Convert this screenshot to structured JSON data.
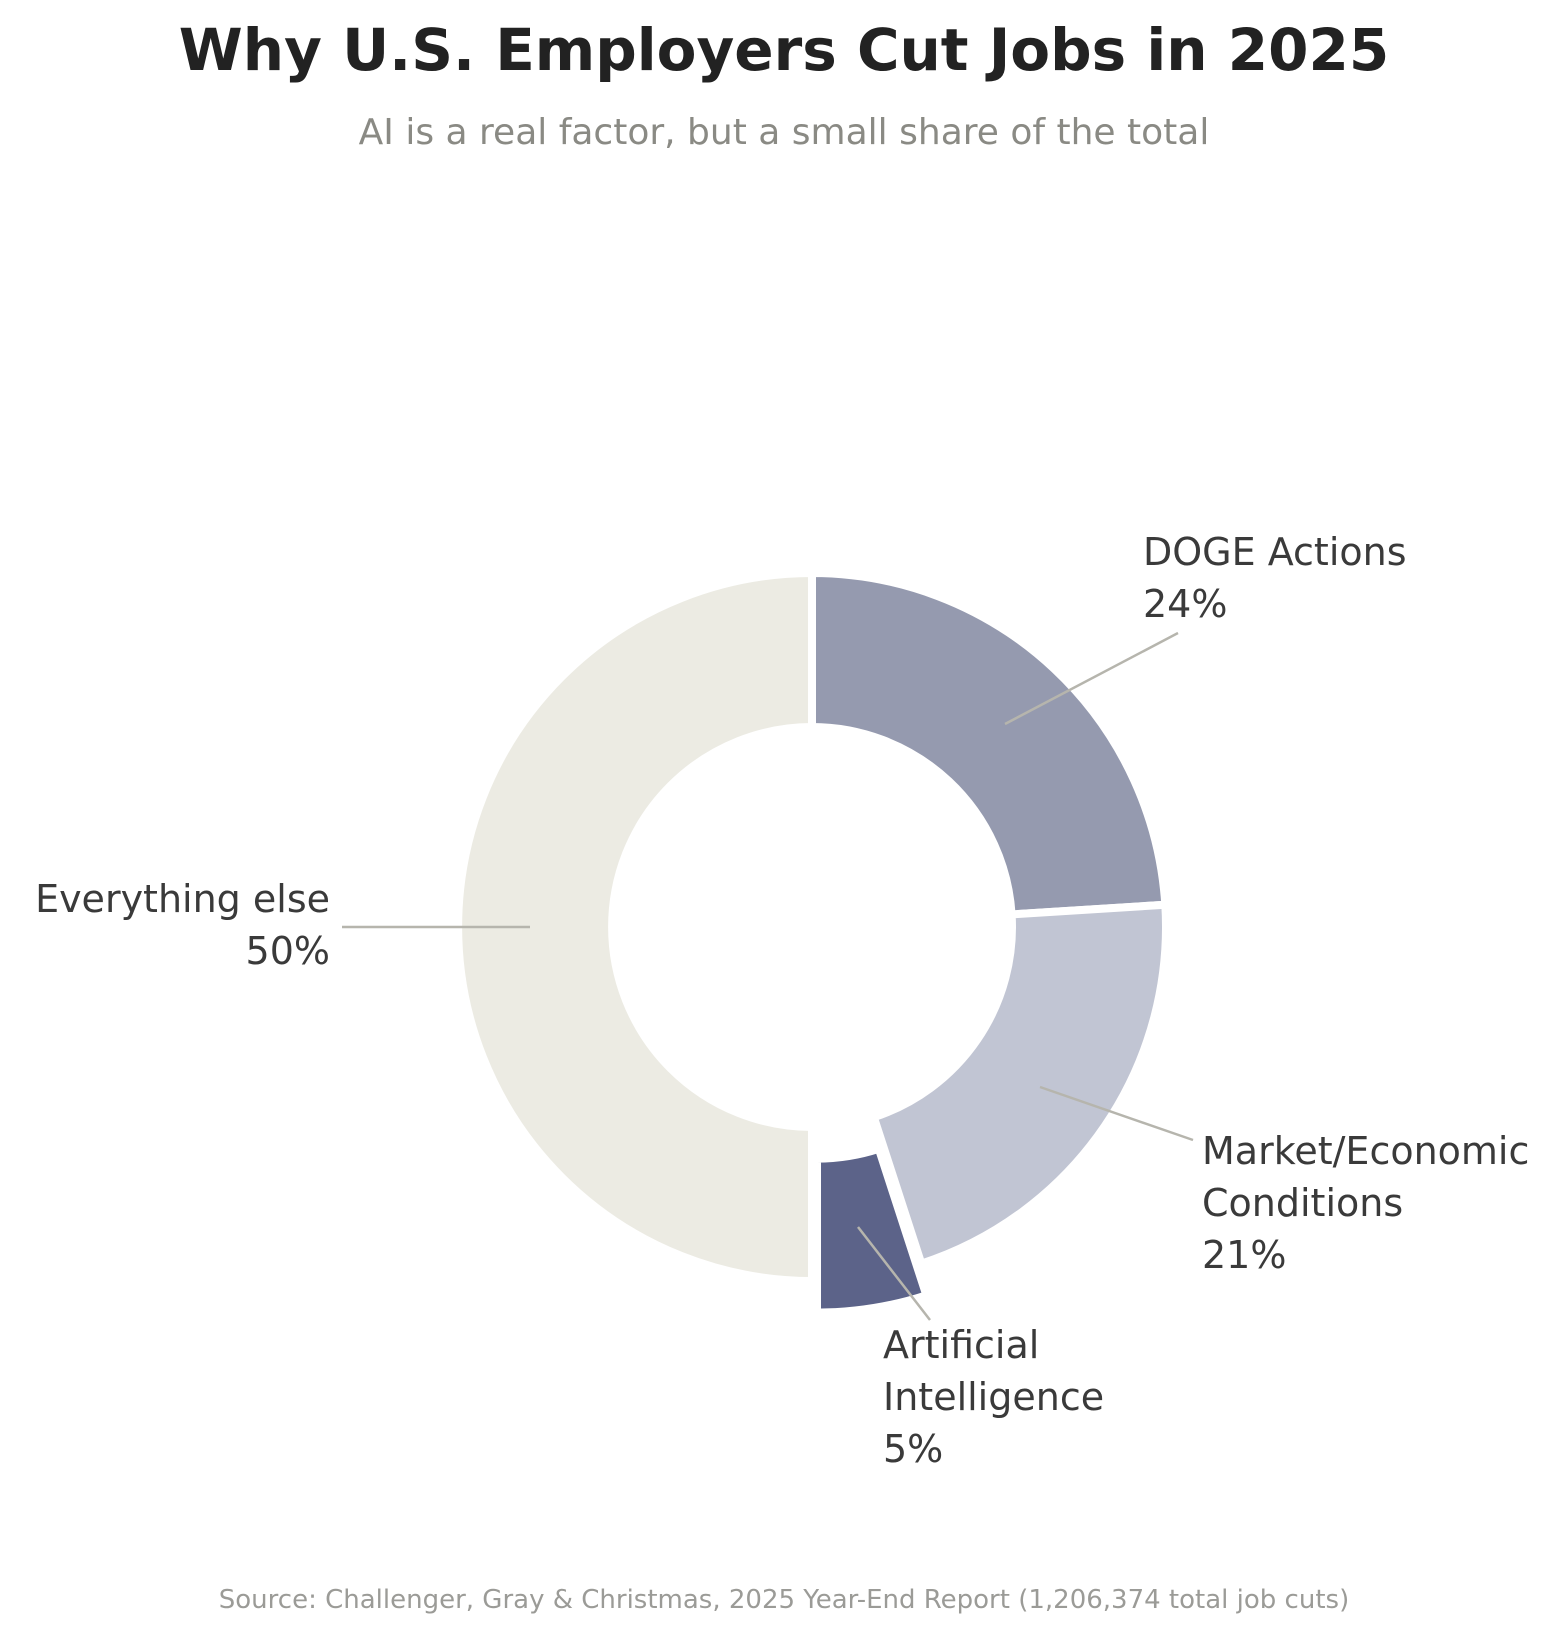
{
  "chart_data": {
    "type": "pie",
    "title": "Why U.S. Employers Cut Jobs in 2025",
    "subtitle": "AI is a real factor, but a small share of the total",
    "source": "Source: Challenger, Gray & Christmas, 2025 Year-End Report (1,206,374 total job cuts)",
    "donut": true,
    "slices": [
      {
        "name_lines": [
          "DOGE Actions"
        ],
        "value": 24,
        "value_label": "24%",
        "color": "#959aaf"
      },
      {
        "name_lines": [
          "Market/Economic",
          "Conditions"
        ],
        "value": 21,
        "value_label": "21%",
        "color": "#c1c5d3"
      },
      {
        "name_lines": [
          "Artificial",
          "Intelligence"
        ],
        "value": 5,
        "value_label": "5%",
        "color": "#5c6389",
        "exploded": true
      },
      {
        "name_lines": [
          "Everything else"
        ],
        "value": 50,
        "value_label": "50%",
        "color": "#ecebe3"
      }
    ]
  }
}
